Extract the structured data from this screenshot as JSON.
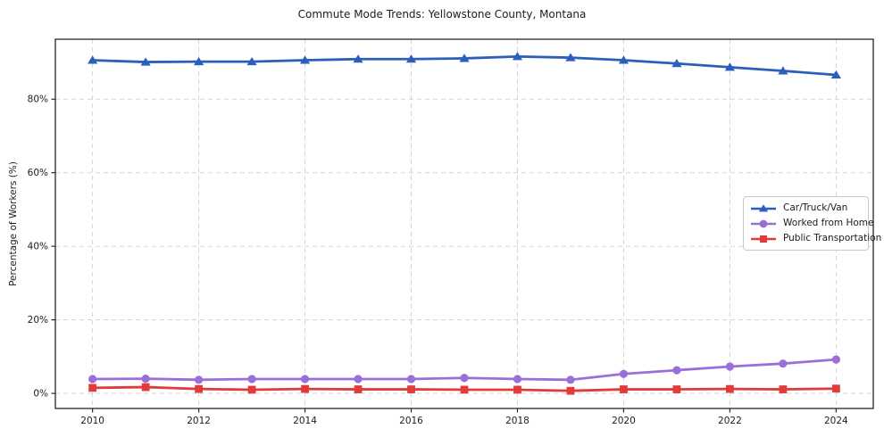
{
  "title": "Commute Mode Trends: Yellowstone County, Montana",
  "chart_data": {
    "type": "line",
    "title": "Commute Mode Trends: Yellowstone County, Montana",
    "xlabel": "",
    "ylabel": "Percentage of Workers (%)",
    "x": [
      2010,
      2011,
      2012,
      2013,
      2014,
      2015,
      2016,
      2017,
      2018,
      2019,
      2020,
      2021,
      2022,
      2023,
      2024
    ],
    "series": [
      {
        "name": "Car/Truck/Van",
        "color": "#2b5fba",
        "marker": "triangle",
        "values": [
          90.6,
          90.1,
          90.2,
          90.2,
          90.6,
          90.9,
          90.9,
          91.1,
          91.6,
          91.3,
          90.6,
          89.7,
          88.7,
          87.7,
          86.6
        ]
      },
      {
        "name": "Worked from Home",
        "color": "#9a70d8",
        "marker": "circle",
        "values": [
          3.9,
          4.0,
          3.7,
          3.9,
          3.9,
          3.9,
          3.9,
          4.2,
          3.9,
          3.7,
          5.3,
          6.3,
          7.3,
          8.1,
          9.2
        ]
      },
      {
        "name": "Public Transportation",
        "color": "#e13c3c",
        "marker": "square",
        "values": [
          1.5,
          1.7,
          1.2,
          1.0,
          1.2,
          1.1,
          1.1,
          1.0,
          1.0,
          0.7,
          1.1,
          1.1,
          1.2,
          1.1,
          1.3
        ]
      }
    ],
    "x_ticks": [
      2010,
      2012,
      2014,
      2016,
      2018,
      2020,
      2022,
      2024
    ],
    "x_tick_labels": [
      "2010",
      "2012",
      "2014",
      "2016",
      "2018",
      "2020",
      "2022",
      "2024"
    ],
    "y_ticks": [
      0,
      20,
      40,
      60,
      80
    ],
    "y_tick_labels": [
      "0%",
      "20%",
      "40%",
      "60%",
      "80%"
    ],
    "xlim": [
      2009.3,
      2024.7
    ],
    "ylim": [
      -4.1,
      96.3
    ],
    "grid": true,
    "grid_style": "dashed",
    "legend_position": "center-right"
  },
  "style": {
    "grid_color": "#cfcfcf",
    "spine_color": "#262626",
    "tick_label_color": "#1c1c1c",
    "background_color": "#ffffff"
  }
}
